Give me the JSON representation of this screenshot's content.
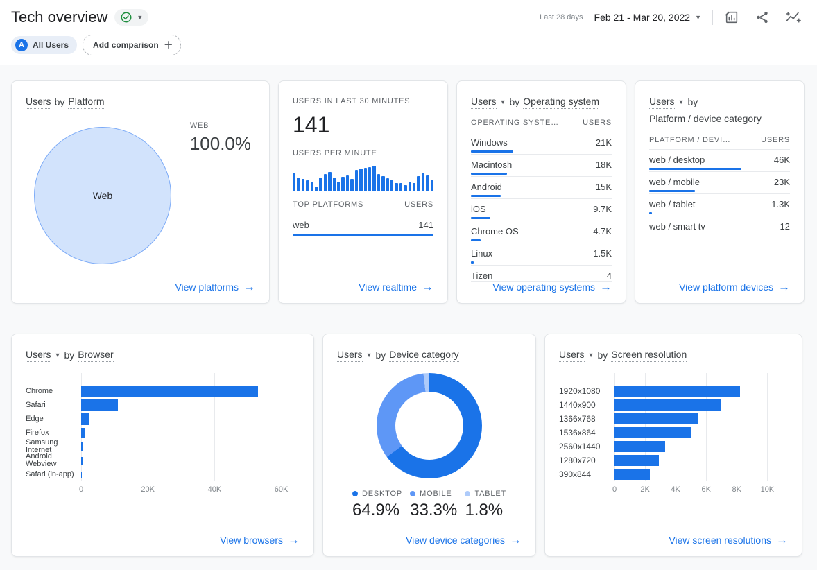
{
  "header": {
    "title": "Tech overview",
    "date_range_label": "Last 28 days",
    "date_range": "Feb 21 - Mar 20, 2022",
    "icons": [
      "customize-report-icon",
      "share-icon",
      "insights-icon"
    ]
  },
  "filters": {
    "avatar_letter": "A",
    "all_users_label": "All Users",
    "add_comparison_label": "Add comparison"
  },
  "colors": {
    "accent": "#1a73e8",
    "bar": "#1a73e8",
    "link": "#1a73e8",
    "pie_fill": "#d2e3fc",
    "pie_stroke": "#7baaf7",
    "check_green": "#1e8e3e"
  },
  "cards": {
    "platform": {
      "metric": "Users",
      "by": "by",
      "dimension": "Platform",
      "stat_label": "WEB",
      "stat_value": "100.0%",
      "circle_label": "Web",
      "pie": {
        "fill": "#d2e3fc",
        "stroke": "#7baaf7",
        "pct": 100
      },
      "link": "View platforms"
    },
    "realtime": {
      "header": "USERS IN LAST 30 MINUTES",
      "value": "141",
      "per_minute_label": "USERS PER MINUTE",
      "sparkline": [
        65,
        50,
        45,
        40,
        35,
        15,
        50,
        62,
        72,
        50,
        35,
        52,
        58,
        45,
        78,
        85,
        88,
        90,
        95,
        62,
        55,
        48,
        42,
        30,
        28,
        22,
        35,
        28,
        55,
        68,
        58,
        42
      ],
      "table": {
        "col_dim": "TOP PLATFORMS",
        "col_val": "USERS"
      },
      "rows": [
        {
          "label": "web",
          "value": "141",
          "bar_pct": 100
        }
      ],
      "link": "View realtime"
    },
    "os": {
      "metric": "Users",
      "by": "by",
      "dimension": "Operating system",
      "col_dim": "OPERATING SYSTE…",
      "col_val": "USERS",
      "rows": [
        {
          "label": "Windows",
          "value": "21K",
          "bar_pct": 30
        },
        {
          "label": "Macintosh",
          "value": "18K",
          "bar_pct": 25.7
        },
        {
          "label": "Android",
          "value": "15K",
          "bar_pct": 21.4
        },
        {
          "label": "iOS",
          "value": "9.7K",
          "bar_pct": 13.9
        },
        {
          "label": "Chrome OS",
          "value": "4.7K",
          "bar_pct": 6.7
        },
        {
          "label": "Linux",
          "value": "1.5K",
          "bar_pct": 2.1
        },
        {
          "label": "Tizen",
          "value": "4",
          "bar_pct": 0
        }
      ],
      "link": "View operating systems"
    },
    "platform_device": {
      "metric": "Users",
      "by": "by",
      "dimension": "Platform / device category",
      "col_dim": "PLATFORM / DEVI…",
      "col_val": "USERS",
      "rows": [
        {
          "label": "web / desktop",
          "value": "46K",
          "bar_pct": 65.4
        },
        {
          "label": "web / mobile",
          "value": "23K",
          "bar_pct": 32.7
        },
        {
          "label": "web / tablet",
          "value": "1.3K",
          "bar_pct": 1.8
        },
        {
          "label": "web / smart tv",
          "value": "12",
          "bar_pct": 0
        }
      ],
      "link": "View platform devices"
    },
    "browser": {
      "metric": "Users",
      "by": "by",
      "dimension": "Browser",
      "chart": {
        "type": "bar-horizontal",
        "categories": [
          "Chrome",
          "Safari",
          "Edge",
          "Firefox",
          "Samsung Internet",
          "Android Webview",
          "Safari (in-app)"
        ],
        "values": [
          53000,
          11000,
          2200,
          1000,
          550,
          400,
          250
        ],
        "axis_max": 63000,
        "ticks": [
          {
            "label": "0",
            "value": 0
          },
          {
            "label": "20K",
            "value": 20000
          },
          {
            "label": "40K",
            "value": 40000
          },
          {
            "label": "60K",
            "value": 60000
          }
        ]
      },
      "link": "View browsers"
    },
    "device_category": {
      "metric": "Users",
      "by": "by",
      "dimension": "Device category",
      "chart_type": "donut",
      "slices": [
        {
          "label": "DESKTOP",
          "value": "64.9%",
          "pct": 64.9,
          "color": "#1a73e8"
        },
        {
          "label": "MOBILE",
          "value": "33.3%",
          "pct": 33.3,
          "color": "#5e97f6"
        },
        {
          "label": "TABLET",
          "value": "1.8%",
          "pct": 1.8,
          "color": "#aecbfa"
        }
      ],
      "link": "View device categories"
    },
    "screen_resolution": {
      "metric": "Users",
      "by": "by",
      "dimension": "Screen resolution",
      "chart": {
        "type": "bar-horizontal",
        "categories": [
          "1920x1080",
          "1440x900",
          "1366x768",
          "1536x864",
          "2560x1440",
          "1280x720",
          "390x844"
        ],
        "values": [
          8200,
          7000,
          5500,
          5000,
          3300,
          2900,
          2300
        ],
        "axis_max": 10800,
        "ticks": [
          {
            "label": "0",
            "value": 0
          },
          {
            "label": "2K",
            "value": 2000
          },
          {
            "label": "4K",
            "value": 4000
          },
          {
            "label": "6K",
            "value": 6000
          },
          {
            "label": "8K",
            "value": 8000
          },
          {
            "label": "10K",
            "value": 10000
          }
        ]
      },
      "link": "View screen resolutions"
    }
  }
}
